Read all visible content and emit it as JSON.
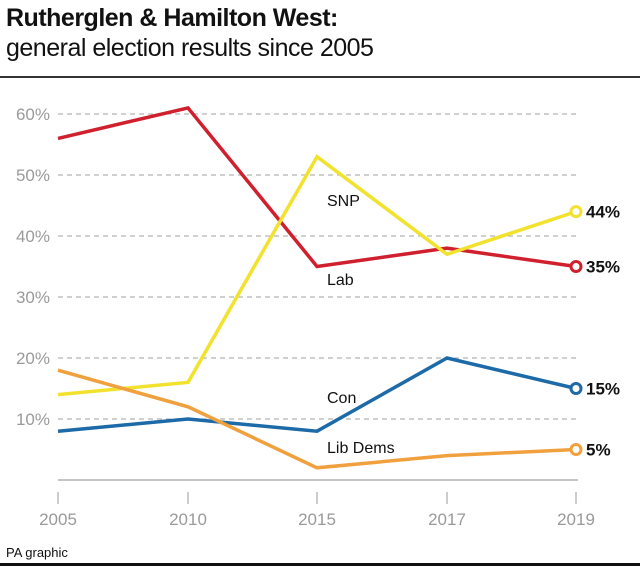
{
  "header": {
    "title": "Rutherglen & Hamilton West:",
    "subtitle": "general election results since 2005"
  },
  "footer": {
    "source": "PA graphic"
  },
  "chart_data": {
    "type": "line",
    "title": "Rutherglen & Hamilton West:",
    "subtitle": "general election results since 2005",
    "xlabel": "",
    "ylabel": "",
    "x": [
      "2005",
      "2010",
      "2015",
      "2017",
      "2019"
    ],
    "ylim": [
      0,
      60
    ],
    "yticks": [
      10,
      20,
      30,
      40,
      50,
      60
    ],
    "ytick_labels": [
      "10%",
      "20%",
      "30%",
      "40%",
      "50%",
      "60%"
    ],
    "grid": true,
    "legend": "inline labels",
    "series": [
      {
        "name": "Lab",
        "color": "#d0202e",
        "values": [
          56,
          61,
          35,
          38,
          35
        ],
        "end_label": "35%"
      },
      {
        "name": "SNP",
        "color": "#f2e22e",
        "values": [
          14,
          16,
          53,
          37,
          44
        ],
        "end_label": "44%"
      },
      {
        "name": "Con",
        "color": "#1c6aa8",
        "values": [
          8,
          10,
          8,
          20,
          15
        ],
        "end_label": "15%"
      },
      {
        "name": "Lib Dems",
        "color": "#f0a03c",
        "values": [
          18,
          12,
          2,
          4,
          5
        ],
        "end_label": "5%"
      }
    ]
  }
}
